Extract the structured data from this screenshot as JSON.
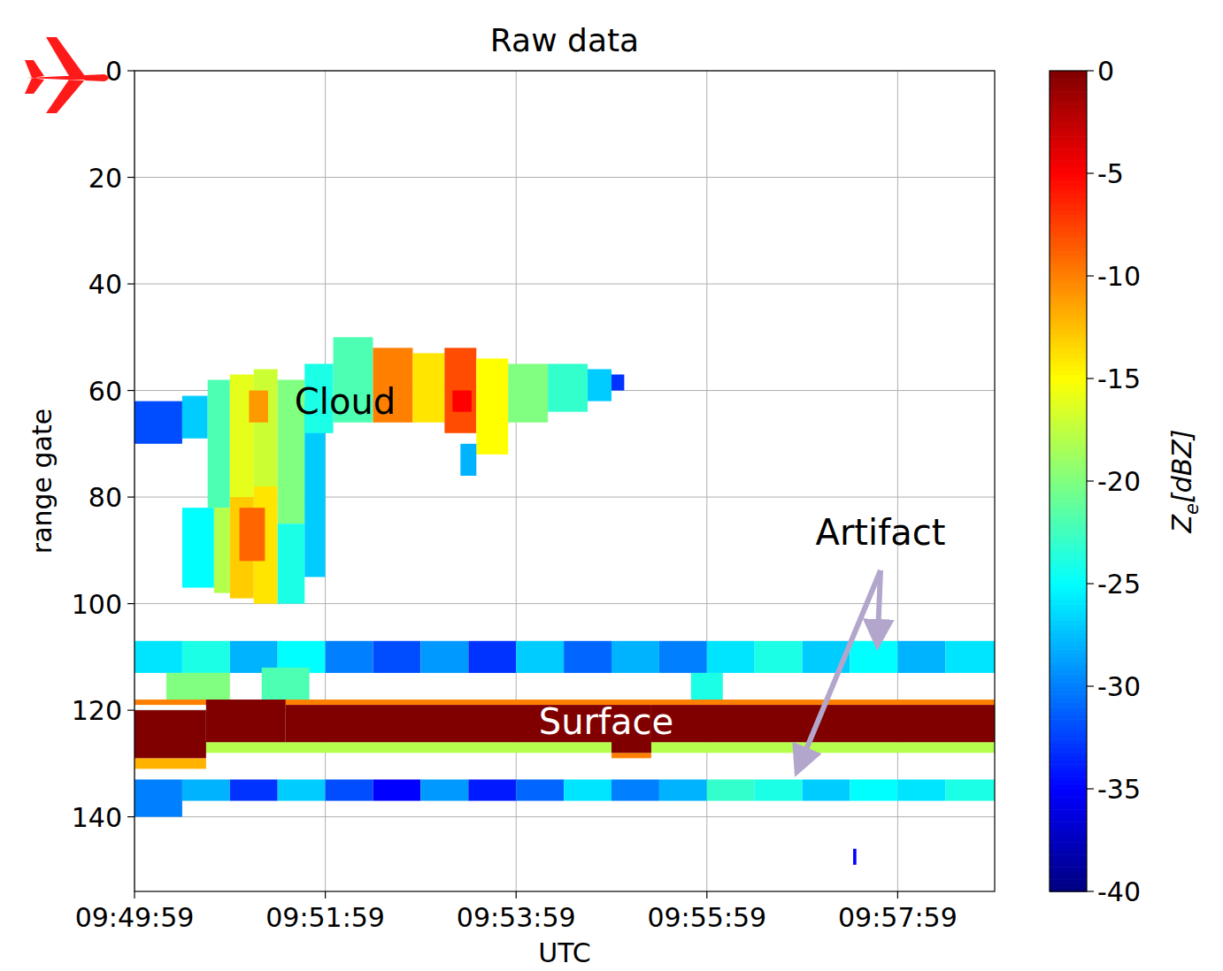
{
  "chart_data": {
    "type": "heatmap",
    "title": "Raw data",
    "x_label": "UTC",
    "y_label": "range gate",
    "xlim": [
      0,
      541
    ],
    "xticks": [
      {
        "value": 0,
        "label": "09:49:59"
      },
      {
        "value": 120,
        "label": "09:51:59"
      },
      {
        "value": 240,
        "label": "09:53:59"
      },
      {
        "value": 360,
        "label": "09:55:59"
      },
      {
        "value": 480,
        "label": "09:57:59"
      }
    ],
    "ylim": [
      154,
      0
    ],
    "yticks": [
      0,
      20,
      40,
      60,
      80,
      100,
      120,
      140
    ],
    "grid": true,
    "annotations": [
      {
        "text": "Cloud"
      },
      {
        "text": "Surface"
      },
      {
        "text": "Artifact"
      }
    ],
    "colorbar": {
      "range": [
        -40,
        0
      ],
      "ticks": [
        0,
        -5,
        -10,
        -15,
        -20,
        -25,
        -30,
        -35,
        -40
      ],
      "label": "Ze[dBZ]"
    },
    "cells": [
      [
        0,
        30,
        62,
        70,
        -32
      ],
      [
        30,
        46,
        61,
        69,
        -27
      ],
      [
        30,
        50,
        82,
        97,
        -25
      ],
      [
        46,
        60,
        58,
        82,
        -22
      ],
      [
        50,
        60,
        82,
        98,
        -18
      ],
      [
        60,
        75,
        57,
        80,
        -16
      ],
      [
        60,
        75,
        80,
        99,
        -13
      ],
      [
        75,
        90,
        56,
        78,
        -17
      ],
      [
        75,
        90,
        78,
        100,
        -14
      ],
      [
        90,
        107,
        58,
        85,
        -20
      ],
      [
        90,
        107,
        85,
        100,
        -24
      ],
      [
        107,
        120,
        62,
        95,
        -27
      ],
      [
        66,
        82,
        82,
        92,
        -9
      ],
      [
        72,
        84,
        60,
        66,
        -11
      ],
      [
        107,
        125,
        55,
        68,
        -24
      ],
      [
        125,
        150,
        50,
        66,
        -22
      ],
      [
        150,
        175,
        52,
        66,
        -10
      ],
      [
        175,
        195,
        53,
        66,
        -14
      ],
      [
        195,
        215,
        52,
        68,
        -8
      ],
      [
        215,
        235,
        54,
        72,
        -15
      ],
      [
        235,
        260,
        55,
        66,
        -20
      ],
      [
        260,
        285,
        55,
        64,
        -23
      ],
      [
        285,
        300,
        56,
        62,
        -27
      ],
      [
        300,
        308,
        57,
        60,
        -33
      ],
      [
        200,
        212,
        60,
        64,
        -5
      ],
      [
        205,
        215,
        70,
        76,
        -28
      ],
      [
        0,
        30,
        107,
        113,
        -26
      ],
      [
        30,
        60,
        107,
        113,
        -24
      ],
      [
        60,
        90,
        107,
        113,
        -28
      ],
      [
        90,
        120,
        107,
        113,
        -25
      ],
      [
        120,
        150,
        107,
        113,
        -30
      ],
      [
        150,
        180,
        107,
        113,
        -32
      ],
      [
        180,
        210,
        107,
        113,
        -29
      ],
      [
        210,
        240,
        107,
        113,
        -33
      ],
      [
        240,
        270,
        107,
        113,
        -27
      ],
      [
        270,
        300,
        107,
        113,
        -31
      ],
      [
        300,
        330,
        107,
        113,
        -28
      ],
      [
        330,
        360,
        107,
        113,
        -30
      ],
      [
        360,
        390,
        107,
        113,
        -26
      ],
      [
        390,
        420,
        107,
        113,
        -24
      ],
      [
        420,
        450,
        107,
        113,
        -27
      ],
      [
        450,
        480,
        107,
        113,
        -25
      ],
      [
        480,
        510,
        107,
        113,
        -28
      ],
      [
        510,
        541,
        107,
        113,
        -26
      ],
      [
        20,
        60,
        113,
        119,
        -20
      ],
      [
        80,
        110,
        112,
        119,
        -22
      ],
      [
        350,
        370,
        113,
        119,
        -24
      ],
      [
        0,
        30,
        133,
        140,
        -30
      ],
      [
        30,
        60,
        133,
        137,
        -28
      ],
      [
        60,
        90,
        133,
        137,
        -33
      ],
      [
        90,
        120,
        133,
        137,
        -27
      ],
      [
        120,
        150,
        133,
        137,
        -32
      ],
      [
        150,
        180,
        133,
        137,
        -35
      ],
      [
        180,
        210,
        133,
        137,
        -29
      ],
      [
        210,
        240,
        133,
        137,
        -34
      ],
      [
        240,
        270,
        133,
        137,
        -31
      ],
      [
        270,
        300,
        133,
        137,
        -26
      ],
      [
        300,
        330,
        133,
        137,
        -30
      ],
      [
        330,
        360,
        133,
        137,
        -28
      ],
      [
        360,
        390,
        133,
        137,
        -23
      ],
      [
        390,
        420,
        133,
        137,
        -24
      ],
      [
        420,
        450,
        133,
        137,
        -27
      ],
      [
        450,
        480,
        133,
        137,
        -25
      ],
      [
        480,
        510,
        133,
        137,
        -26
      ],
      [
        510,
        541,
        133,
        137,
        -24
      ],
      [
        0,
        541,
        118,
        119,
        -10
      ],
      [
        0,
        541,
        126,
        128,
        -18
      ],
      [
        0,
        45,
        129,
        131,
        -12
      ],
      [
        300,
        325,
        128,
        129,
        -10
      ],
      [
        0,
        45,
        120,
        129,
        0
      ],
      [
        45,
        95,
        118,
        126,
        0
      ],
      [
        95,
        300,
        119,
        126,
        0
      ],
      [
        300,
        325,
        119,
        128,
        0
      ],
      [
        325,
        541,
        119,
        126,
        0
      ],
      [
        452,
        454,
        146,
        149,
        -35
      ]
    ]
  }
}
